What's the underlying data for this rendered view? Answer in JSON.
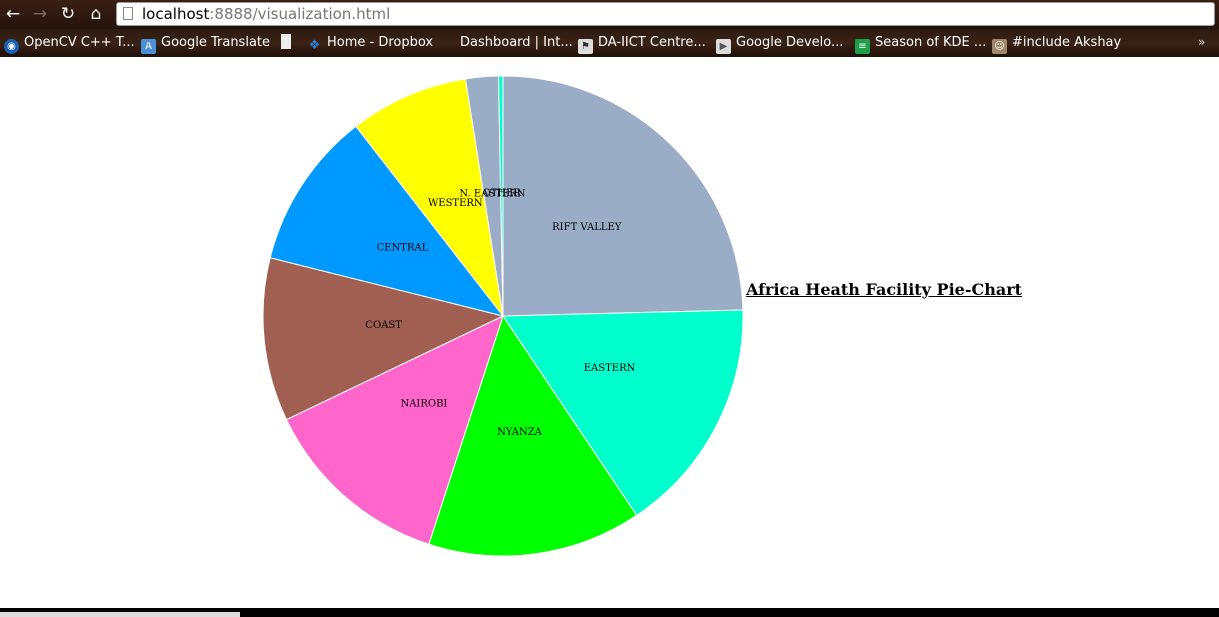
{
  "browser": {
    "url_host": "localhost",
    "url_rest": ":8888/visualization.html",
    "nav": {
      "back_icon": "back-arrow-icon",
      "forward_icon": "forward-arrow-icon",
      "reload_icon": "reload-icon",
      "home_icon": "home-icon"
    },
    "bookmarks": [
      {
        "label": "OpenCV C++ T...",
        "icon": "opencv-icon",
        "color": "#1a5fb4"
      },
      {
        "label": "Google Translate",
        "icon": "translate-icon",
        "color": "#4a90d9"
      },
      {
        "label": "",
        "icon": "page-icon",
        "color": "#eeeeee"
      },
      {
        "label": "Home - Dropbox",
        "icon": "dropbox-icon",
        "color": "#2a7fd6"
      },
      {
        "label": "Dashboard | Int...",
        "icon": "dashboard-icon",
        "color": "#3b2216"
      },
      {
        "label": "DA-IICT Centre...",
        "icon": "daiict-icon",
        "color": "#dddddd"
      },
      {
        "label": "Google Develo...",
        "icon": "google-dev-icon",
        "color": "#dddddd"
      },
      {
        "label": "Season of KDE ...",
        "icon": "spreadsheet-icon",
        "color": "#1e9e4a"
      },
      {
        "label": "#include Akshay",
        "icon": "avatar-icon",
        "color": "#a0866b"
      }
    ],
    "more": "»"
  },
  "chart_data": {
    "type": "pie",
    "title": "Africa Heath Facility Pie-Chart",
    "start": "12 o'clock, clockwise",
    "slices": [
      {
        "label": "RIFT VALLEY",
        "value": 24.6,
        "color": "#9aacc6"
      },
      {
        "label": "EASTERN",
        "value": 16.0,
        "color": "#00ffcc"
      },
      {
        "label": "NYANZA",
        "value": 14.4,
        "color": "#00ff00"
      },
      {
        "label": "NAIROBI",
        "value": 12.9,
        "color": "#ff66cc"
      },
      {
        "label": "COAST",
        "value": 11.0,
        "color": "#a05f50"
      },
      {
        "label": "CENTRAL",
        "value": 10.6,
        "color": "#0099ff"
      },
      {
        "label": "WESTERN",
        "value": 8.0,
        "color": "#ffff00"
      },
      {
        "label": "N. EASTERN",
        "value": 2.2,
        "color": "#9aacc6"
      },
      {
        "label": "OTHER",
        "value": 0.3,
        "color": "#00ffcc"
      }
    ]
  }
}
